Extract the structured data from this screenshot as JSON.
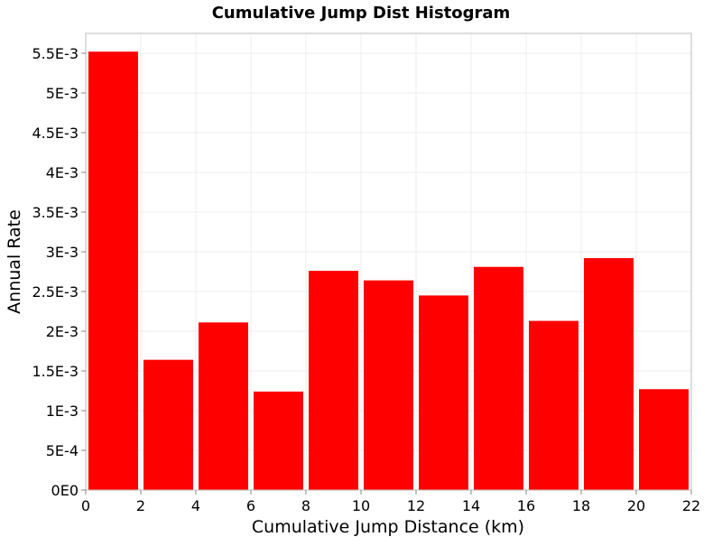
{
  "chart_data": {
    "type": "bar",
    "title": "Cumulative Jump Dist Histogram",
    "xlabel": "Cumulative Jump Distance (km)",
    "ylabel": "Annual Rate",
    "xlim": [
      0,
      22
    ],
    "ylim": [
      0,
      0.00575
    ],
    "x_ticks": [
      0,
      2,
      4,
      6,
      8,
      10,
      12,
      14,
      16,
      18,
      20,
      22
    ],
    "x_tick_labels": [
      "0",
      "2",
      "4",
      "6",
      "8",
      "10",
      "12",
      "14",
      "16",
      "18",
      "20",
      "22"
    ],
    "y_ticks": [
      0,
      0.0005,
      0.001,
      0.0015,
      0.002,
      0.0025,
      0.003,
      0.0035,
      0.004,
      0.0045,
      0.005,
      0.0055
    ],
    "y_tick_labels": [
      "0E0",
      "5E-4",
      "1E-3",
      "1.5E-3",
      "2E-3",
      "2.5E-3",
      "3E-3",
      "3.5E-3",
      "4E-3",
      "4.5E-3",
      "5E-3",
      "5.5E-3"
    ],
    "bin_width": 2,
    "bins": [
      {
        "x": 1,
        "value": 0.00552
      },
      {
        "x": 3,
        "value": 0.00164
      },
      {
        "x": 5,
        "value": 0.00211
      },
      {
        "x": 7,
        "value": 0.00124
      },
      {
        "x": 9,
        "value": 0.00276
      },
      {
        "x": 11,
        "value": 0.00264
      },
      {
        "x": 13,
        "value": 0.00245
      },
      {
        "x": 15,
        "value": 0.00281
      },
      {
        "x": 17,
        "value": 0.00213
      },
      {
        "x": 19,
        "value": 0.00292
      },
      {
        "x": 21,
        "value": 0.00127
      }
    ],
    "bar_color": "#ff0000",
    "grid": true,
    "legend": "none"
  }
}
